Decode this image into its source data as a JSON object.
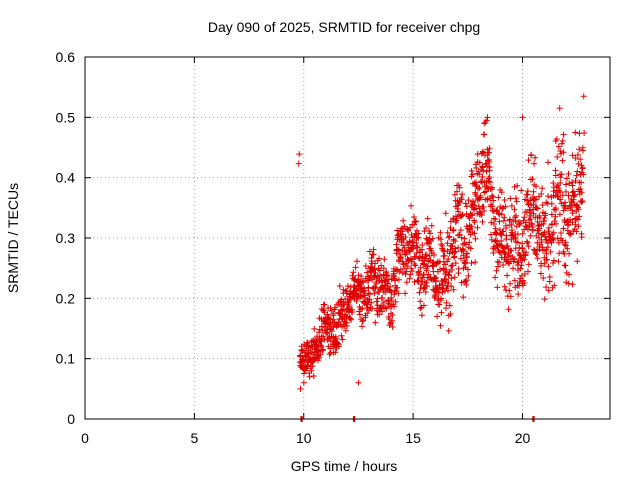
{
  "chart_data": {
    "type": "scatter",
    "title": "Day 090 of 2025, SRMTID for receiver chpg",
    "xlabel": "GPS time / hours",
    "ylabel": "SRMTID / TECUs",
    "xlim": [
      0,
      24
    ],
    "ylim": [
      0,
      0.6
    ],
    "xticks": [
      0,
      5,
      10,
      15,
      20
    ],
    "yticks": [
      0,
      0.1,
      0.2,
      0.3,
      0.4,
      0.5,
      0.6
    ],
    "xtick_labels": [
      "0",
      "5",
      "10",
      "15",
      "20"
    ],
    "ytick_labels": [
      "0",
      "0.1",
      "0.2",
      "0.3",
      "0.4",
      "0.5",
      "0.6"
    ],
    "grid": true,
    "marker": "+",
    "color": "#e00000",
    "zero_value_times": [
      9.9,
      12.3,
      20.5
    ],
    "trend": [
      {
        "x": 9.8,
        "low": 0.05,
        "high": 0.14
      },
      {
        "x": 10.5,
        "low": 0.06,
        "high": 0.17
      },
      {
        "x": 11.0,
        "low": 0.08,
        "high": 0.2
      },
      {
        "x": 11.5,
        "low": 0.1,
        "high": 0.22
      },
      {
        "x": 12.0,
        "low": 0.12,
        "high": 0.24
      },
      {
        "x": 12.5,
        "low": 0.16,
        "high": 0.27
      },
      {
        "x": 13.0,
        "low": 0.14,
        "high": 0.29
      },
      {
        "x": 13.5,
        "low": 0.12,
        "high": 0.3
      },
      {
        "x": 14.0,
        "low": 0.14,
        "high": 0.31
      },
      {
        "x": 14.5,
        "low": 0.18,
        "high": 0.35
      },
      {
        "x": 15.0,
        "low": 0.2,
        "high": 0.38
      },
      {
        "x": 15.5,
        "low": 0.16,
        "high": 0.33
      },
      {
        "x": 16.0,
        "low": 0.14,
        "high": 0.34
      },
      {
        "x": 16.5,
        "low": 0.12,
        "high": 0.36
      },
      {
        "x": 17.0,
        "low": 0.18,
        "high": 0.4
      },
      {
        "x": 17.5,
        "low": 0.2,
        "high": 0.45
      },
      {
        "x": 18.0,
        "low": 0.25,
        "high": 0.48
      },
      {
        "x": 18.5,
        "low": 0.3,
        "high": 0.5
      },
      {
        "x": 19.0,
        "low": 0.15,
        "high": 0.42
      },
      {
        "x": 19.5,
        "low": 0.16,
        "high": 0.4
      },
      {
        "x": 20.0,
        "low": 0.2,
        "high": 0.45
      },
      {
        "x": 20.5,
        "low": 0.22,
        "high": 0.46
      },
      {
        "x": 21.0,
        "low": 0.18,
        "high": 0.44
      },
      {
        "x": 21.5,
        "low": 0.2,
        "high": 0.5
      },
      {
        "x": 22.0,
        "low": 0.15,
        "high": 0.48
      },
      {
        "x": 22.5,
        "low": 0.25,
        "high": 0.5
      },
      {
        "x": 22.8,
        "low": 0.3,
        "high": 0.54
      }
    ],
    "notable_points": [
      {
        "x": 22.8,
        "y": 0.535
      },
      {
        "x": 21.7,
        "y": 0.515
      },
      {
        "x": 20.0,
        "y": 0.5
      },
      {
        "x": 18.4,
        "y": 0.5
      },
      {
        "x": 12.5,
        "y": 0.06
      },
      {
        "x": 9.85,
        "y": 0.05
      }
    ]
  }
}
